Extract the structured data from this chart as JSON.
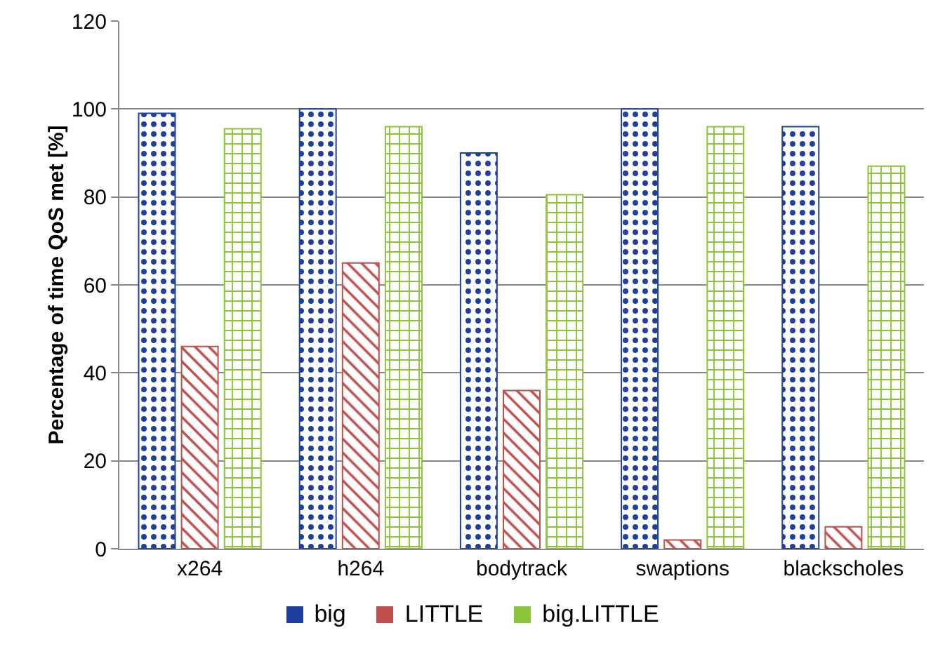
{
  "chart_data": {
    "type": "bar",
    "ylabel": "Percentage of time QoS met [%]",
    "categories": [
      "x264",
      "h264",
      "bodytrack",
      "swaptions",
      "blackscholes"
    ],
    "series": [
      {
        "name": "big",
        "color": "#1f3f9f",
        "values": [
          99,
          100,
          90,
          100,
          96
        ]
      },
      {
        "name": "LITTLE",
        "color": "#c0504d",
        "values": [
          46,
          65,
          36,
          2,
          5
        ]
      },
      {
        "name": "big.LITTLE",
        "color": "#8cc43c",
        "values": [
          95.5,
          96,
          80.5,
          96,
          87
        ]
      }
    ],
    "ylim": [
      0,
      120
    ],
    "yticks": [
      0,
      20,
      40,
      60,
      80,
      100,
      120
    ],
    "grid": "y",
    "legend": "bottom"
  }
}
